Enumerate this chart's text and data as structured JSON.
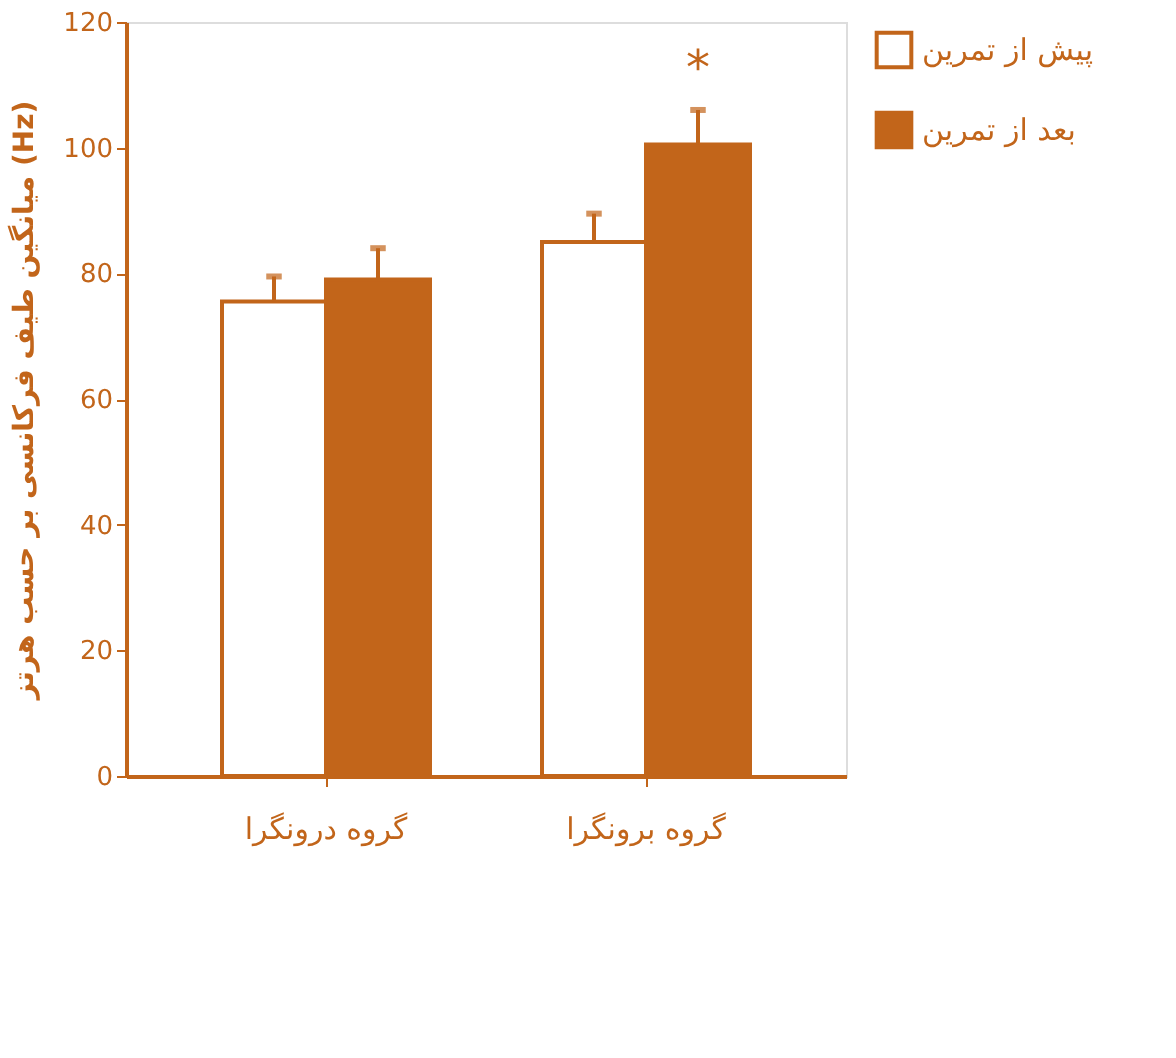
{
  "chart_data": {
    "type": "bar",
    "ylabel": "میانگین طیف فرکانسی بر حسب هرتز (Hz)",
    "categories": [
      "گروه درونگرا",
      "گروه برونگرا"
    ],
    "series": [
      {
        "name": "پیش از تمرین",
        "color": "#ffffff",
        "values": [
          75.5,
          85
        ],
        "errors": [
          4,
          4.5
        ]
      },
      {
        "name": "بعد از تمرین",
        "color": "#c2651a",
        "values": [
          79,
          100.5
        ],
        "errors": [
          5,
          5.5
        ]
      }
    ],
    "ylim": [
      0,
      120
    ],
    "yticks": [
      0,
      20,
      40,
      60,
      80,
      100,
      120
    ],
    "annotations": [
      "*"
    ],
    "legend": "right",
    "grid": false
  }
}
